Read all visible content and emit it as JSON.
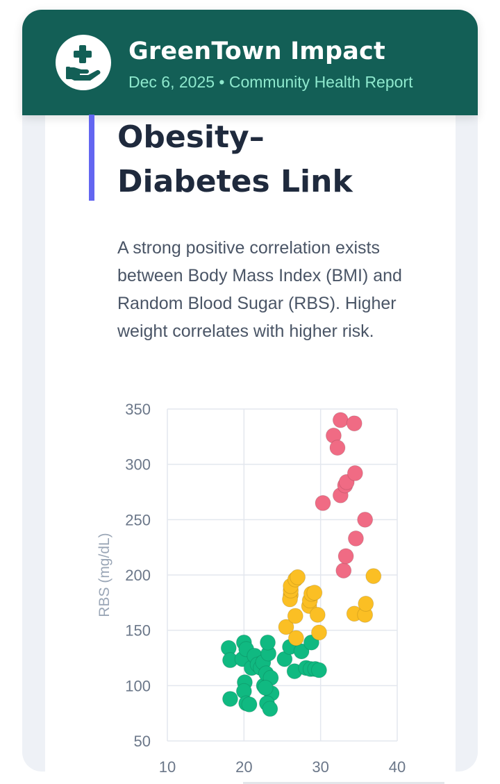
{
  "header": {
    "app_name": "GreenTown Impact",
    "date": "Dec 6, 2025",
    "separator": "•",
    "section": "Community Health Report"
  },
  "article": {
    "title": "Obesity–Diabetes Link",
    "description": "A strong positive correlation exists between Body Mass Index (BMI) and Random Blood Sugar (RBS). Higher weight correlates with higher risk."
  },
  "colors": {
    "header_bg": "#135f56",
    "subline": "#8ee8cd",
    "accent_bar": "#6366f1",
    "normal": "#10b981",
    "prediabetic": "#fbbf24",
    "diabetic": "#f06b84"
  },
  "icons": {
    "logo": "hand-heart-plus-icon"
  },
  "chart_data": {
    "type": "scatter",
    "title": "",
    "xlabel": "",
    "ylabel": "RBS (mg/dL)",
    "xlim": [
      10,
      40
    ],
    "ylim": [
      50,
      350
    ],
    "x_ticks": [
      10,
      20,
      30,
      40
    ],
    "y_ticks": [
      50,
      100,
      150,
      200,
      250,
      300,
      350
    ],
    "grid": true,
    "series": [
      {
        "color": "#10b981",
        "points": [
          [
            18.0,
            134
          ],
          [
            18.2,
            123
          ],
          [
            19.8,
            124
          ],
          [
            20.0,
            139
          ],
          [
            20.3,
            133
          ],
          [
            20.1,
            103
          ],
          [
            20.0,
            95
          ],
          [
            20.3,
            84
          ],
          [
            18.2,
            88
          ],
          [
            20.7,
            83
          ],
          [
            21.0,
            116
          ],
          [
            21.4,
            127
          ],
          [
            21.8,
            119
          ],
          [
            22.2,
            116
          ],
          [
            22.5,
            121
          ],
          [
            22.6,
            100
          ],
          [
            22.9,
            111
          ],
          [
            23.2,
            129
          ],
          [
            23.1,
            139
          ],
          [
            23.5,
            107
          ],
          [
            23.6,
            93
          ],
          [
            23.0,
            84
          ],
          [
            23.4,
            79
          ],
          [
            22.8,
            98
          ],
          [
            25.3,
            124
          ],
          [
            26.0,
            135
          ],
          [
            26.6,
            113
          ],
          [
            27.5,
            131
          ],
          [
            28.1,
            116
          ],
          [
            28.7,
            115
          ],
          [
            28.8,
            139
          ],
          [
            29.3,
            115
          ],
          [
            29.8,
            114
          ]
        ]
      },
      {
        "color": "#fbbf24",
        "points": [
          [
            25.5,
            153
          ],
          [
            26.1,
            182
          ],
          [
            26.0,
            178
          ],
          [
            26.1,
            186
          ],
          [
            26.1,
            190
          ],
          [
            26.7,
            163
          ],
          [
            26.8,
            143
          ],
          [
            26.7,
            196
          ],
          [
            27.0,
            198
          ],
          [
            28.5,
            172
          ],
          [
            28.6,
            177
          ],
          [
            28.8,
            183
          ],
          [
            29.2,
            184
          ],
          [
            29.6,
            164
          ],
          [
            29.8,
            148
          ],
          [
            34.4,
            165
          ],
          [
            35.8,
            164
          ],
          [
            35.9,
            174
          ],
          [
            36.9,
            199
          ]
        ]
      },
      {
        "color": "#f06b84",
        "points": [
          [
            30.3,
            265
          ],
          [
            31.7,
            326
          ],
          [
            32.2,
            315
          ],
          [
            32.6,
            340
          ],
          [
            32.6,
            272
          ],
          [
            33.2,
            281
          ],
          [
            33.4,
            284
          ],
          [
            34.4,
            337
          ],
          [
            34.5,
            292
          ],
          [
            33.0,
            204
          ],
          [
            33.3,
            217
          ],
          [
            34.6,
            233
          ],
          [
            35.8,
            250
          ]
        ]
      }
    ]
  }
}
